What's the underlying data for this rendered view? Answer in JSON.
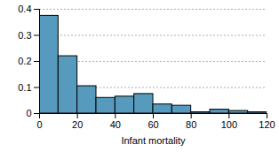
{
  "chart_data": {
    "type": "histogram",
    "x_label": "Infant mortality",
    "bins": [
      0,
      10,
      20,
      30,
      40,
      50,
      60,
      70,
      80,
      90,
      100,
      110,
      120
    ],
    "values": [
      0.375,
      0.22,
      0.105,
      0.06,
      0.065,
      0.075,
      0.035,
      0.03,
      0.005,
      0.015,
      0.01,
      0.005
    ],
    "color": "#569bbd",
    "xlim": [
      0,
      120
    ],
    "xticks": [
      0,
      20,
      40,
      60,
      80,
      100,
      120
    ],
    "ylim": [
      0,
      0.4
    ],
    "yticks": [
      0,
      0.1,
      0.2,
      0.3,
      0.4
    ],
    "grid": true
  }
}
